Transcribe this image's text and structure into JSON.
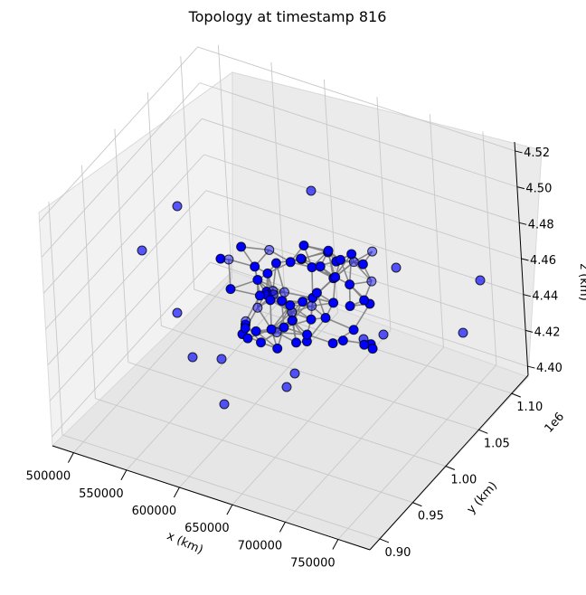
{
  "chart_data": {
    "type": "scatter",
    "projection": "3d",
    "title": "Topology at timestamp 816",
    "xlabel": "x (km)",
    "ylabel": "y (km)",
    "zlabel": "z (km)",
    "y_offset_label": "1e6",
    "x_ticks": [
      {
        "value": 500000,
        "label": "500000"
      },
      {
        "value": 550000,
        "label": "550000"
      },
      {
        "value": 600000,
        "label": "600000"
      },
      {
        "value": 650000,
        "label": "650000"
      },
      {
        "value": 700000,
        "label": "700000"
      },
      {
        "value": 750000,
        "label": "750000"
      }
    ],
    "y_ticks": [
      {
        "value": 0.9,
        "label": "0.90"
      },
      {
        "value": 0.95,
        "label": "0.95"
      },
      {
        "value": 1.0,
        "label": "1.00"
      },
      {
        "value": 1.05,
        "label": "1.05"
      },
      {
        "value": 1.1,
        "label": "1.10"
      }
    ],
    "z_ticks": [
      {
        "value": 4.4,
        "label": "4.40"
      },
      {
        "value": 4.42,
        "label": "4.42"
      },
      {
        "value": 4.44,
        "label": "4.44"
      },
      {
        "value": 4.46,
        "label": "4.46"
      },
      {
        "value": 4.48,
        "label": "4.48"
      },
      {
        "value": 4.5,
        "label": "4.50"
      },
      {
        "value": 4.52,
        "label": "4.52"
      }
    ],
    "grid": true,
    "node_color": "#0000ff",
    "edge_color": "#808080",
    "node_edge_color": "#000000"
  }
}
